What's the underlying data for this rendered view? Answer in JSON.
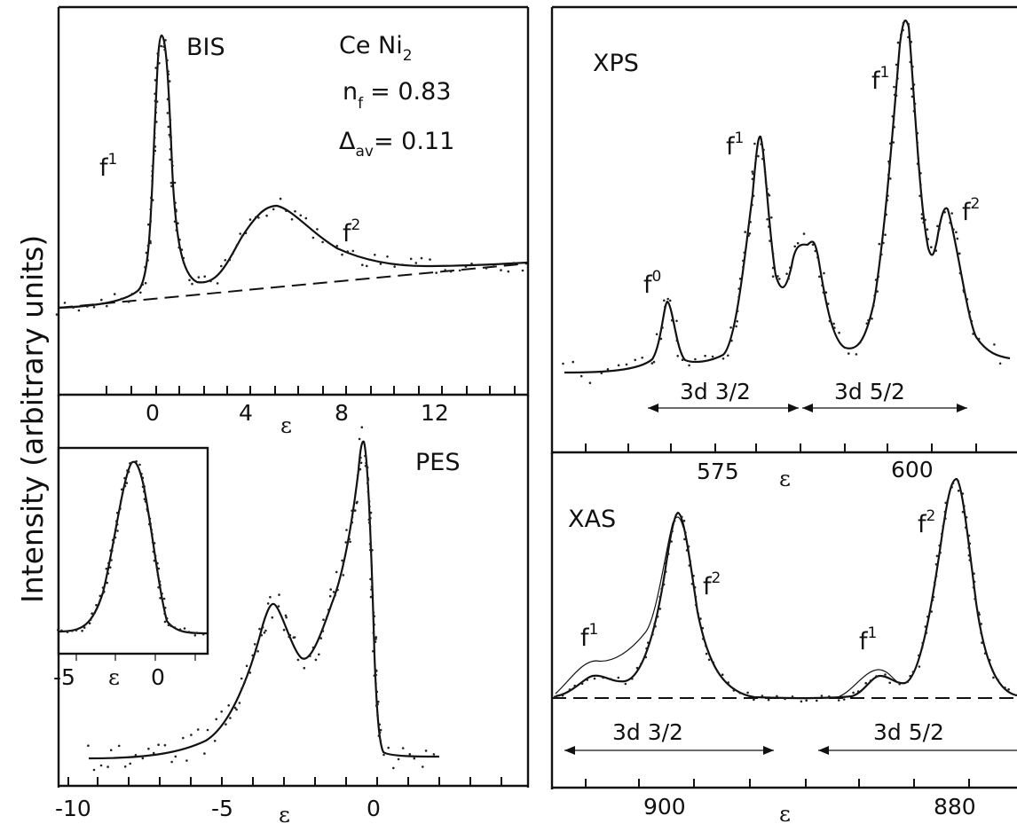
{
  "figure": {
    "ylabel": "Intensity (arbitrary units)",
    "epsilon": "ε"
  },
  "panels": {
    "bis": {
      "title": "BIS",
      "compound": "Ce Ni",
      "compound_sub": "2",
      "nf_label": "n",
      "nf_sub": "f",
      "nf_value": "= 0.83",
      "delta_label": "Δ",
      "delta_sub": "av",
      "delta_value": "= 0.11",
      "peak1": "f",
      "peak1_sup": "1",
      "peak2": "f",
      "peak2_sup": "2",
      "xticks": [
        "0",
        "4",
        "8",
        "12"
      ]
    },
    "pes": {
      "title": "PES",
      "xticks": [
        "-10",
        "-5",
        "0"
      ],
      "inset_xticks": [
        "-5",
        "0"
      ]
    },
    "xps": {
      "title": "XPS",
      "peaks": [
        {
          "text": "f",
          "sup": "0"
        },
        {
          "text": "f",
          "sup": "1"
        },
        {
          "text": "f",
          "sup": "1"
        },
        {
          "text": "f",
          "sup": "2"
        }
      ],
      "range1": "3d 3/2",
      "range2": "3d 5/2",
      "xticks": [
        "575",
        "600"
      ]
    },
    "xas": {
      "title": "XAS",
      "peaks": [
        {
          "text": "f",
          "sup": "1"
        },
        {
          "text": "f",
          "sup": "2"
        },
        {
          "text": "f",
          "sup": "1"
        },
        {
          "text": "f",
          "sup": "2"
        }
      ],
      "range1": "3d 3/2",
      "range2": "3d 5/2",
      "xticks": [
        "900",
        "880"
      ]
    }
  },
  "chart_data": [
    {
      "panel": "BIS",
      "type": "line",
      "xlabel": "ε",
      "ylabel": "Intensity (arbitrary units)",
      "xlim": [
        -3,
        15
      ],
      "series": [
        {
          "name": "",
          "style": "solid",
          "x": [
            -3,
            -1.5,
            -0.5,
            0,
            0.3,
            0.6,
            1,
            1.5,
            2,
            3,
            4,
            5,
            6,
            7,
            8,
            10,
            12,
            15
          ],
          "values": [
            0.0,
            0.03,
            0.2,
            0.85,
            1.0,
            0.8,
            0.3,
            0.1,
            0.08,
            0.12,
            0.25,
            0.35,
            0.3,
            0.2,
            0.14,
            0.12,
            0.14,
            0.16
          ]
        },
        {
          "name": "",
          "style": "dashed",
          "x": [
            -3,
            15
          ],
          "values": [
            0.0,
            0.16
          ]
        }
      ],
      "labels": [
        "BIS",
        "Ce Ni2",
        "nf = 0.83",
        "Δav = 0.11",
        "f1",
        "f2"
      ]
    },
    {
      "panel": "PES",
      "type": "line",
      "xlabel": "ε",
      "xlim": [
        -11,
        3
      ],
      "series": [
        {
          "name": "",
          "x": [
            -9.5,
            -7,
            -6,
            -5,
            -4,
            -3.5,
            -3.2,
            -2.8,
            -2.3,
            -1.5,
            -0.8,
            -0.4,
            -0.2,
            0,
            0.2,
            1,
            2
          ],
          "values": [
            0.0,
            0.02,
            0.05,
            0.12,
            0.3,
            0.49,
            0.45,
            0.32,
            0.28,
            0.45,
            0.75,
            1.0,
            0.75,
            0.2,
            0.02,
            0.0,
            0.0
          ]
        }
      ],
      "inset": {
        "xticks": [
          -5,
          0
        ],
        "shape": "single peak at about -2"
      }
    },
    {
      "panel": "XPS",
      "type": "line",
      "xlabel": "ε",
      "xticks": [
        575,
        600
      ],
      "series": [
        {
          "name": "",
          "x": [
            555,
            560,
            564,
            567,
            570,
            573,
            576,
            578,
            580,
            582,
            584,
            585,
            586,
            587,
            589,
            592,
            595,
            598,
            599,
            600,
            602,
            603,
            604,
            605,
            607,
            610
          ],
          "values": [
            0.0,
            0.03,
            0.27,
            0.06,
            0.05,
            0.2,
            0.67,
            0.24,
            0.15,
            0.38,
            0.35,
            0.38,
            0.3,
            0.1,
            0.05,
            0.18,
            0.6,
            1.0,
            0.7,
            0.42,
            0.5,
            0.43,
            0.2,
            0.05,
            0.03,
            0.02
          ]
        }
      ],
      "annotations": [
        "f0",
        "f1",
        "f1",
        "f2",
        "3d 3/2",
        "3d 5/2"
      ]
    },
    {
      "panel": "XAS",
      "type": "line",
      "xlabel": "ε",
      "xticks": [
        900,
        880
      ],
      "series": [
        {
          "name": "",
          "x": [
            915,
            912,
            909,
            905,
            902,
            900,
            898,
            896,
            893,
            890,
            887,
            885,
            883,
            881,
            880,
            878,
            876,
            874
          ],
          "values": [
            0.03,
            0.08,
            0.05,
            0.2,
            0.6,
            0.86,
            0.6,
            0.25,
            0.05,
            0.0,
            0.0,
            0.1,
            0.08,
            0.4,
            0.95,
            0.5,
            0.12,
            0.03
          ]
        }
      ],
      "annotations": [
        "f1",
        "f2",
        "f1",
        "f2",
        "3d 3/2",
        "3d 5/2"
      ]
    }
  ]
}
